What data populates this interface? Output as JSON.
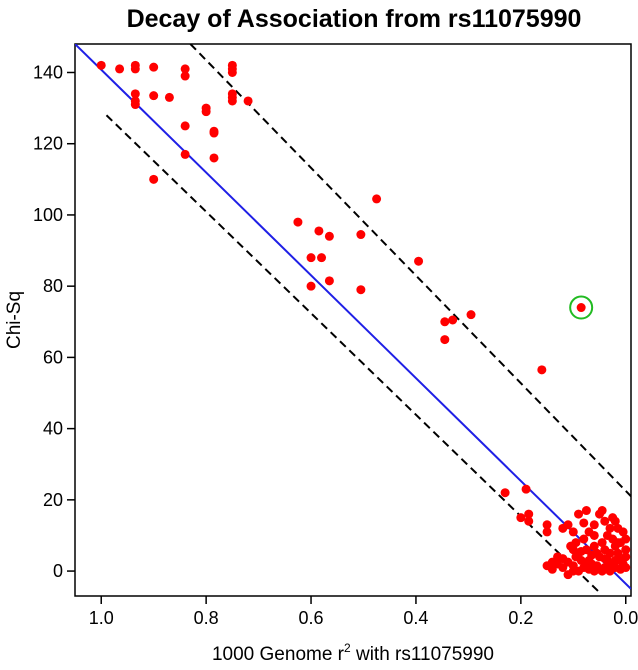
{
  "chart_data": {
    "type": "scatter",
    "title": "Decay of Association from rs11075990",
    "xlabel_main": "1000 Genome r",
    "xlabel_sup": "2",
    "xlabel_rest": " with rs11075990",
    "ylabel": "Chi-Sq",
    "xlim": [
      1.05,
      -0.01
    ],
    "ylim": [
      -7,
      148
    ],
    "x_reversed": true,
    "x_ticks": [
      1.0,
      0.8,
      0.6,
      0.4,
      0.2,
      0.0
    ],
    "x_tick_labels": [
      "1.0",
      "0.8",
      "0.6",
      "0.4",
      "0.2",
      "0.0"
    ],
    "y_ticks": [
      0,
      20,
      40,
      60,
      80,
      100,
      120,
      140
    ],
    "y_tick_labels": [
      "0",
      "20",
      "40",
      "60",
      "80",
      "100",
      "120",
      "140"
    ],
    "grid": false,
    "point_color": "#ff0000",
    "fit_line": {
      "color": "#1f1fe6",
      "from": [
        1.05,
        148
      ],
      "to": [
        -0.01,
        -5
      ]
    },
    "bound_lines": [
      {
        "style": "dashed",
        "color": "#000000",
        "from": [
          0.83,
          148
        ],
        "to": [
          -0.01,
          21
        ]
      },
      {
        "style": "dashed",
        "color": "#000000",
        "from": [
          0.99,
          128
        ],
        "to": [
          0.05,
          -6
        ]
      }
    ],
    "highlight": {
      "x": 0.085,
      "y": 74,
      "color": "#22bb22"
    },
    "points": [
      [
        1.0,
        142
      ],
      [
        0.965,
        141
      ],
      [
        0.935,
        142
      ],
      [
        0.935,
        141
      ],
      [
        0.9,
        141.5
      ],
      [
        0.84,
        141
      ],
      [
        0.84,
        139
      ],
      [
        0.75,
        142
      ],
      [
        0.75,
        141
      ],
      [
        0.75,
        140
      ],
      [
        0.935,
        134
      ],
      [
        0.935,
        132
      ],
      [
        0.935,
        131
      ],
      [
        0.9,
        133.5
      ],
      [
        0.87,
        133
      ],
      [
        0.8,
        130
      ],
      [
        0.8,
        129
      ],
      [
        0.75,
        134
      ],
      [
        0.75,
        133
      ],
      [
        0.75,
        132
      ],
      [
        0.72,
        132
      ],
      [
        0.84,
        125
      ],
      [
        0.785,
        123.5
      ],
      [
        0.785,
        123
      ],
      [
        0.84,
        117
      ],
      [
        0.785,
        116
      ],
      [
        0.9,
        110
      ],
      [
        0.625,
        98
      ],
      [
        0.585,
        95.5
      ],
      [
        0.565,
        94
      ],
      [
        0.505,
        94.5
      ],
      [
        0.475,
        104.5
      ],
      [
        0.6,
        88
      ],
      [
        0.58,
        88
      ],
      [
        0.6,
        80
      ],
      [
        0.565,
        81.5
      ],
      [
        0.505,
        79
      ],
      [
        0.395,
        87
      ],
      [
        0.345,
        70
      ],
      [
        0.33,
        70.5
      ],
      [
        0.295,
        72
      ],
      [
        0.345,
        65
      ],
      [
        0.16,
        56.5
      ],
      [
        0.085,
        74
      ],
      [
        0.23,
        22
      ],
      [
        0.2,
        15
      ],
      [
        0.19,
        23
      ],
      [
        0.185,
        16
      ],
      [
        0.185,
        14
      ],
      [
        0.15,
        13
      ],
      [
        0.15,
        11
      ],
      [
        0.12,
        12
      ],
      [
        0.11,
        13
      ],
      [
        0.1,
        11
      ],
      [
        0.09,
        16
      ],
      [
        0.075,
        17
      ],
      [
        0.05,
        16
      ],
      [
        0.045,
        17
      ],
      [
        0.02,
        14
      ],
      [
        0.03,
        12
      ],
      [
        0.08,
        9
      ],
      [
        0.06,
        10
      ],
      [
        0.1,
        6
      ],
      [
        0.095,
        4
      ],
      [
        0.085,
        3
      ],
      [
        0.13,
        2
      ],
      [
        0.15,
        1.5
      ],
      [
        0.14,
        0.5
      ],
      [
        0.12,
        1
      ],
      [
        0.11,
        -1
      ],
      [
        0.1,
        0
      ],
      [
        0.09,
        5
      ],
      [
        0.075,
        6
      ],
      [
        0.07,
        3
      ],
      [
        0.065,
        2
      ],
      [
        0.06,
        7
      ],
      [
        0.055,
        5
      ],
      [
        0.05,
        4
      ],
      [
        0.045,
        8
      ],
      [
        0.04,
        6
      ],
      [
        0.035,
        3
      ],
      [
        0.03,
        2
      ],
      [
        0.025,
        9
      ],
      [
        0.02,
        7
      ],
      [
        0.015,
        5
      ],
      [
        0.01,
        3
      ],
      [
        0.005,
        2
      ],
      [
        0.0,
        1
      ],
      [
        0.0,
        4
      ],
      [
        0.0,
        6
      ],
      [
        0.0,
        9
      ],
      [
        0.005,
        11
      ],
      [
        0.01,
        8
      ],
      [
        0.02,
        1
      ],
      [
        0.03,
        0
      ],
      [
        0.04,
        1
      ],
      [
        0.05,
        0.5
      ],
      [
        0.06,
        0
      ],
      [
        0.07,
        0.5
      ],
      [
        0.08,
        1
      ],
      [
        0.09,
        0
      ],
      [
        0.1,
        1.5
      ],
      [
        0.11,
        2.5
      ],
      [
        0.12,
        3.5
      ],
      [
        0.13,
        4
      ],
      [
        0.14,
        2.5
      ],
      [
        0.035,
        10
      ],
      [
        0.015,
        12
      ],
      [
        0.06,
        13
      ],
      [
        0.07,
        11
      ],
      [
        0.08,
        13.5
      ],
      [
        0.095,
        8
      ],
      [
        0.105,
        7
      ],
      [
        0.04,
        14
      ],
      [
        0.025,
        15
      ],
      [
        0.055,
        1.5
      ],
      [
        0.045,
        0
      ],
      [
        0.065,
        4.5
      ],
      [
        0.075,
        2
      ],
      [
        0.085,
        5.5
      ],
      [
        0.02,
        3
      ],
      [
        0.01,
        0.5
      ],
      [
        0.03,
        5
      ],
      [
        0.015,
        8
      ],
      [
        0.04,
        3.5
      ]
    ]
  }
}
